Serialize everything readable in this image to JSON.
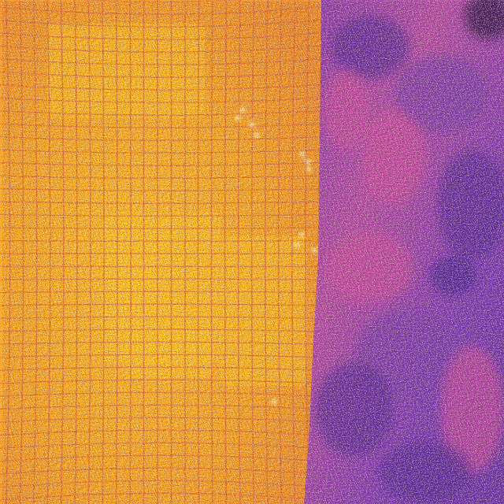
{
  "image": {
    "kind": "thermal-infrared-photo",
    "palette": "inferno",
    "colors": {
      "hot_yellow": "#ffc21a",
      "warm_orange": "#f5a11c",
      "grid_line": "#d8663a",
      "cool_magenta": "#c94a9a",
      "cold_purple": "#7a3aa6",
      "coldest_violet": "#5a2a96",
      "hotspot_white": "#fff2a8"
    },
    "regions": [
      {
        "name": "tiled-wall",
        "temperature": "warm"
      },
      {
        "name": "outdoor-scene",
        "temperature": "cool"
      }
    ],
    "hotspot_count": 11
  }
}
